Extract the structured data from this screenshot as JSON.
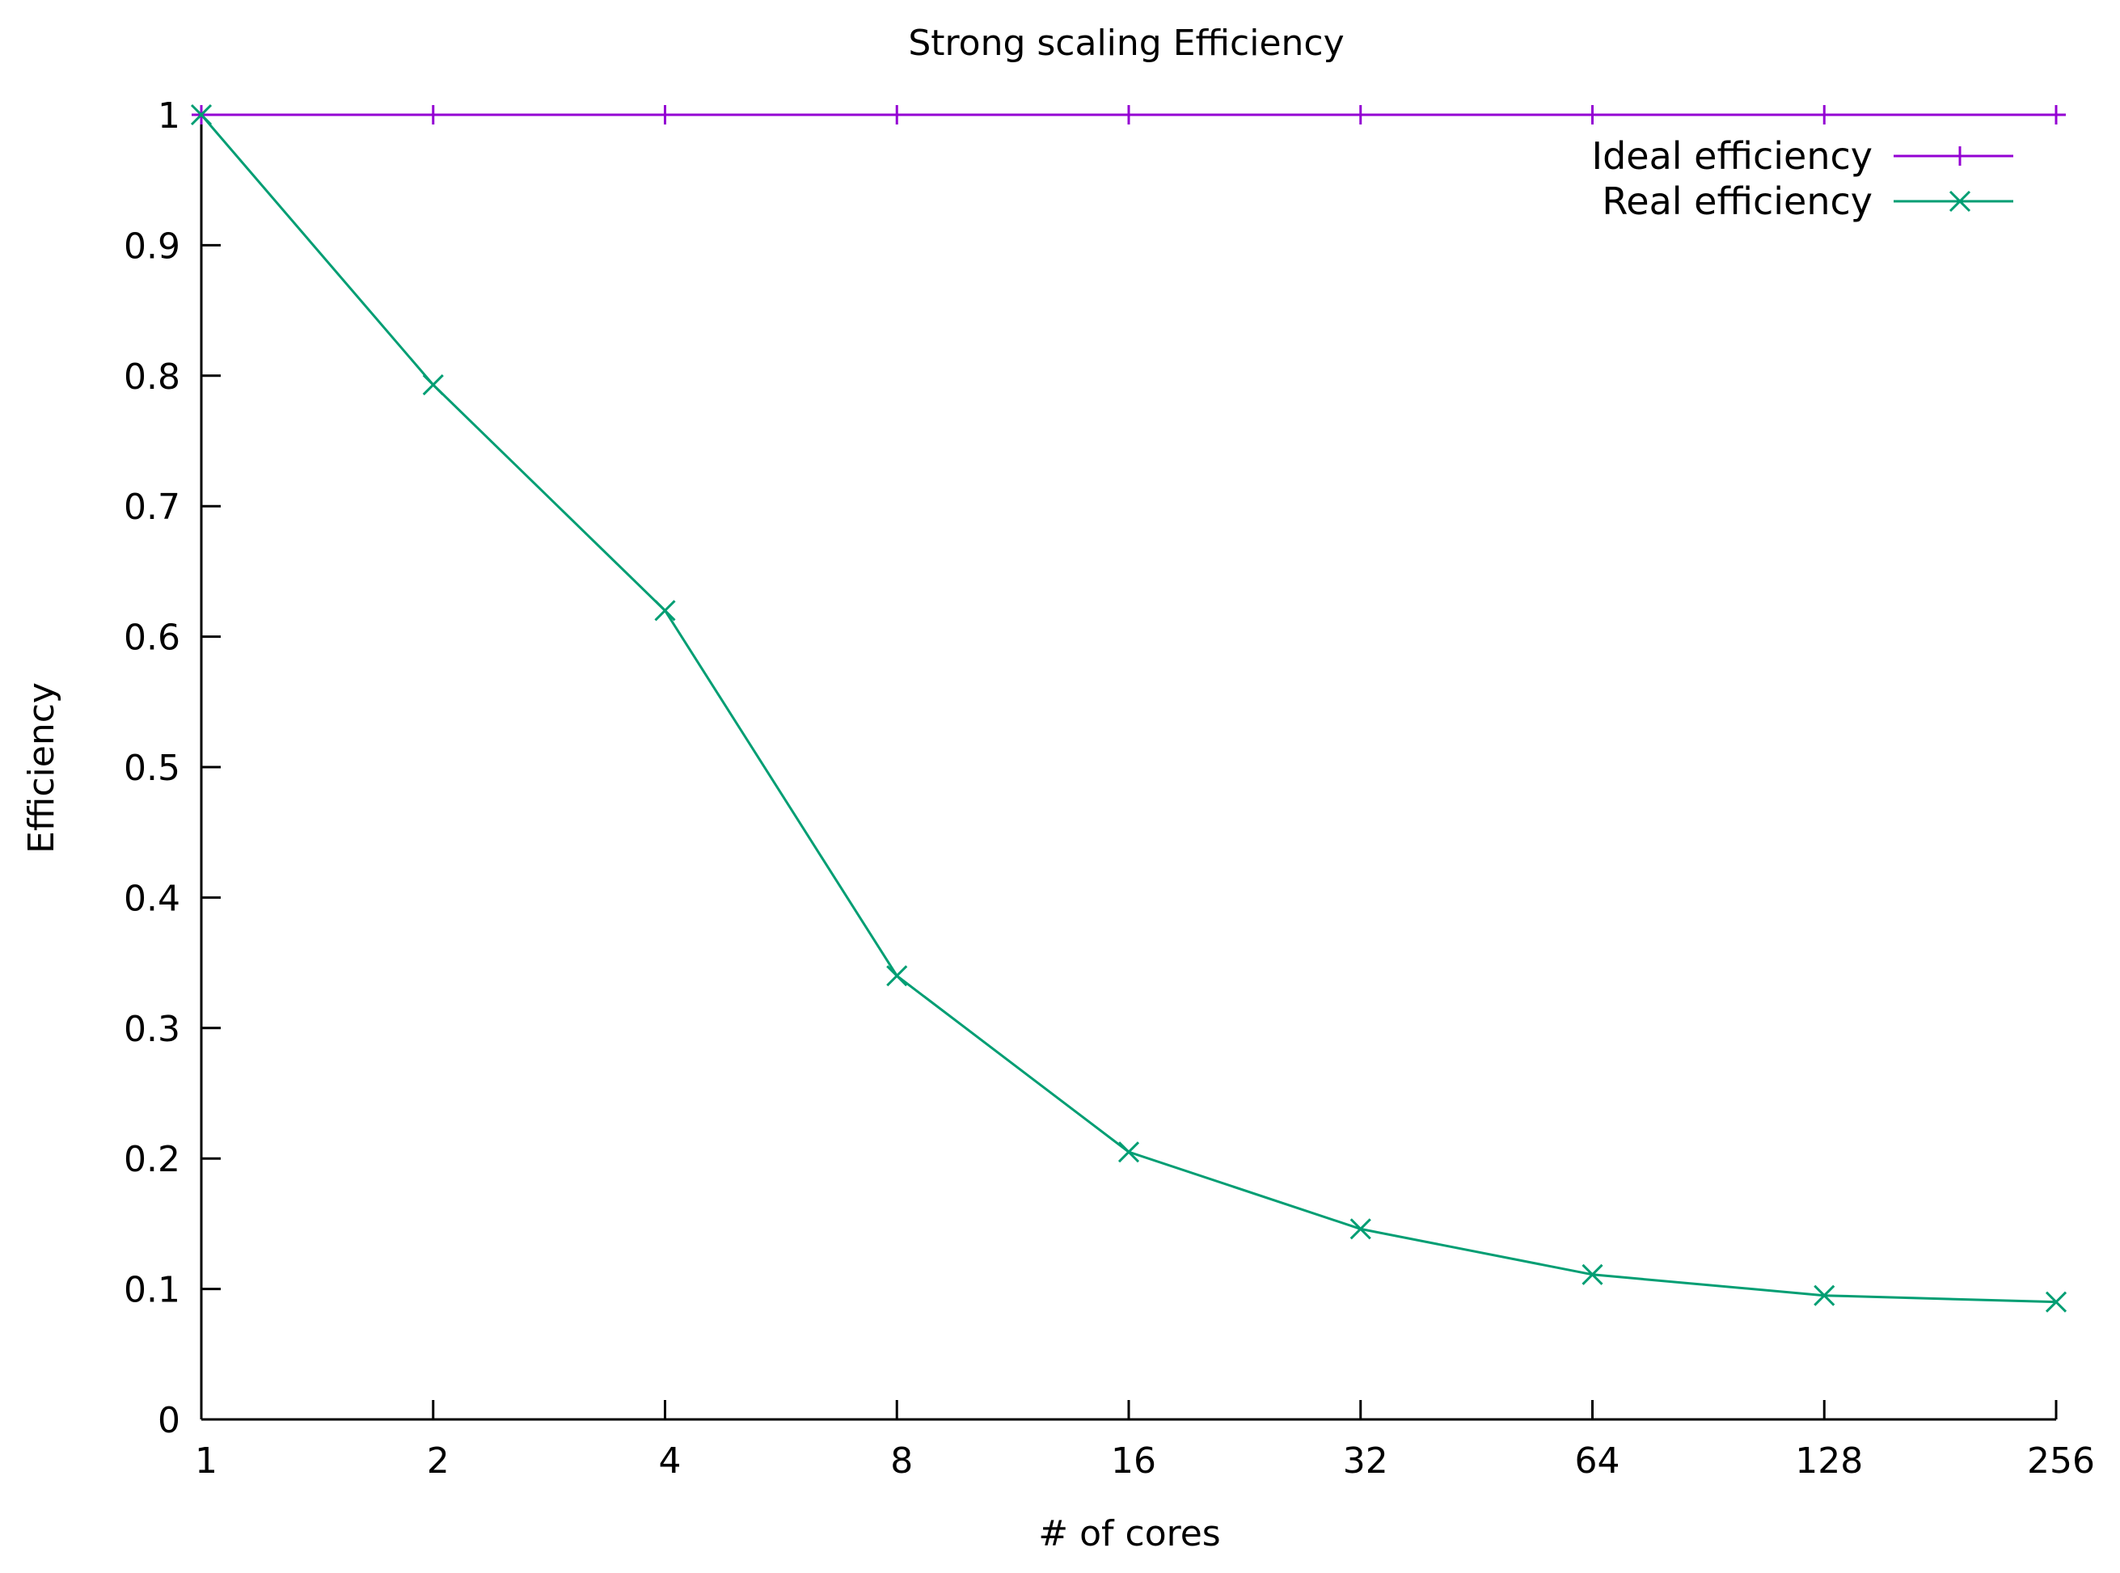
{
  "chart_data": {
    "type": "line",
    "title": "Strong scaling Efficiency",
    "xlabel": "# of cores",
    "ylabel": "Efficiency",
    "x_scale": "log2",
    "x": [
      1,
      2,
      4,
      8,
      16,
      32,
      64,
      128,
      256
    ],
    "x_tick_labels": [
      "1",
      "2",
      "4",
      "8",
      "16",
      "32",
      "64",
      "128",
      "256"
    ],
    "y_ticks": [
      0,
      0.1,
      0.2,
      0.3,
      0.4,
      0.5,
      0.6,
      0.7,
      0.8,
      0.9,
      1
    ],
    "y_tick_labels": [
      "0",
      "0.1",
      "0.2",
      "0.3",
      "0.4",
      "0.5",
      "0.6",
      "0.7",
      "0.8",
      "0.9",
      "1"
    ],
    "xlim": [
      1,
      256
    ],
    "ylim": [
      0,
      1
    ],
    "grid": false,
    "legend_position": "top-right",
    "series": [
      {
        "name": "Ideal efficiency",
        "color": "#9400d3",
        "marker": "plus",
        "values": [
          1,
          1,
          1,
          1,
          1,
          1,
          1,
          1,
          1
        ]
      },
      {
        "name": "Real efficiency",
        "color": "#009e73",
        "marker": "cross",
        "values": [
          1.0,
          0.793,
          0.62,
          0.34,
          0.205,
          0.146,
          0.111,
          0.095,
          0.09
        ]
      }
    ]
  }
}
